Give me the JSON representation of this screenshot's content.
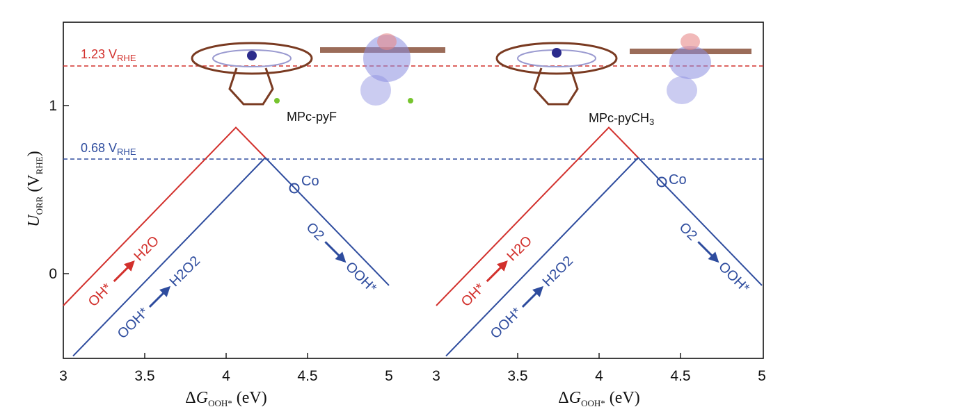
{
  "chart_data": [
    {
      "type": "line",
      "panel": "left",
      "molecule_label": "MPc-pyF",
      "xlabel": "ΔG_OOH* (eV)",
      "ylabel": "U_ORR (V_RHE)",
      "xlim": [
        3,
        5
      ],
      "ylim": [
        -0.5,
        1.5
      ],
      "xticks": [
        "3",
        "3.5",
        "4",
        "4.5",
        "5"
      ],
      "yticks": [
        "0",
        "1"
      ],
      "reference_lines": [
        {
          "label": "1.23 V",
          "subscript": "RHE",
          "y": 1.23,
          "color": "#d2302c"
        },
        {
          "label": "0.68 V",
          "subscript": "RHE",
          "y": 0.68,
          "color": "#2e4c9e"
        }
      ],
      "series": [
        {
          "name": "OH* → H2O",
          "color": "#d2302c",
          "x": [
            3.0,
            4.06,
            4.24
          ],
          "y": [
            -0.19,
            0.87,
            0.69
          ]
        },
        {
          "name": "OOH* → H2O2",
          "color": "#2e4c9e",
          "x": [
            3.06,
            4.24
          ],
          "y": [
            -0.49,
            0.69
          ]
        },
        {
          "name": "O2 → OOH*",
          "color": "#2e4c9e",
          "x": [
            4.24,
            5.0
          ],
          "y": [
            0.69,
            -0.07
          ]
        }
      ],
      "markers": [
        {
          "label": "Co",
          "x": 4.42,
          "y": 0.51,
          "color": "#2e4c9e"
        }
      ],
      "annotations": {
        "red_reaction": {
          "from": "OH*",
          "to": "H2O"
        },
        "blue_left_reaction": {
          "from": "OOH*",
          "to": "H2O2"
        },
        "blue_right_reaction": {
          "from": "O2",
          "to": "OOH*"
        }
      }
    },
    {
      "type": "line",
      "panel": "right",
      "molecule_label": "MPc-pyCH3",
      "xlabel": "ΔG_OOH* (eV)",
      "xlim": [
        3,
        5
      ],
      "ylim": [
        -0.5,
        1.5
      ],
      "xticks": [
        "3",
        "3.5",
        "4",
        "4.5",
        "5"
      ],
      "reference_lines": [
        {
          "y": 1.23,
          "color": "#d2302c"
        },
        {
          "y": 0.68,
          "color": "#2e4c9e"
        }
      ],
      "series": [
        {
          "name": "OH* → H2O",
          "color": "#d2302c",
          "x": [
            3.0,
            4.06,
            4.24
          ],
          "y": [
            -0.19,
            0.87,
            0.69
          ]
        },
        {
          "name": "OOH* → H2O2",
          "color": "#2e4c9e",
          "x": [
            3.06,
            4.24
          ],
          "y": [
            -0.49,
            0.69
          ]
        },
        {
          "name": "O2 → OOH*",
          "color": "#2e4c9e",
          "x": [
            4.24,
            5.0
          ],
          "y": [
            0.69,
            -0.07
          ]
        }
      ],
      "markers": [
        {
          "label": "Co",
          "x": 4.38,
          "y": 0.54,
          "color": "#2e4c9e"
        }
      ],
      "annotations": {
        "red_reaction": {
          "from": "OH*",
          "to": "H2O"
        },
        "blue_left_reaction": {
          "from": "OOH*",
          "to": "H2O2"
        },
        "blue_right_reaction": {
          "from": "O2",
          "to": "OOH*"
        }
      }
    }
  ],
  "colors": {
    "red": "#d2302c",
    "blue": "#2e4c9e",
    "axis": "#111111"
  }
}
